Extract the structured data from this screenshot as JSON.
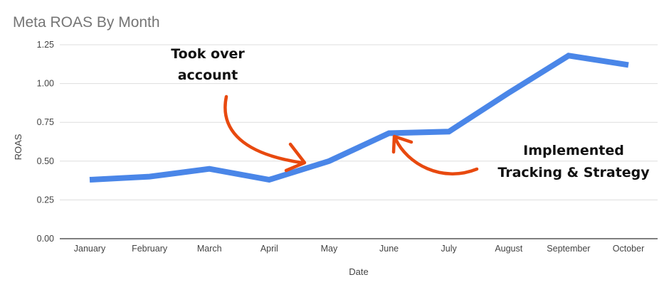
{
  "chart_data": {
    "type": "line",
    "title": "Meta ROAS By Month",
    "xlabel": "Date",
    "ylabel": "ROAS",
    "categories": [
      "January",
      "February",
      "March",
      "April",
      "May",
      "June",
      "July",
      "August",
      "September",
      "October"
    ],
    "series": [
      {
        "values": [
          0.38,
          0.4,
          0.45,
          0.38,
          0.5,
          0.68,
          0.69,
          0.94,
          1.18,
          1.12
        ]
      }
    ],
    "ylim": [
      0,
      1.25
    ],
    "yticks": [
      "0.00",
      "0.25",
      "0.50",
      "0.75",
      "1.00",
      "1.25"
    ],
    "grid": true,
    "legend": "none",
    "annotations": [
      {
        "lines": [
          "Took over",
          "account"
        ],
        "points_to": "May"
      },
      {
        "lines": [
          "Implemented",
          "Tracking & Strategy"
        ],
        "points_to": "June"
      }
    ]
  },
  "colors": {
    "line": "#4A86E8",
    "arrow": "#E8490F",
    "grid": "#dddddd",
    "title": "#757575"
  }
}
